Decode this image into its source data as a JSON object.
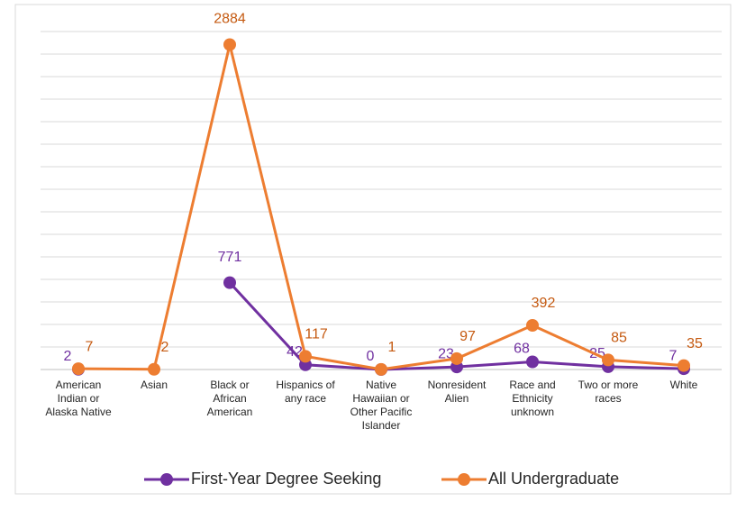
{
  "chart_data": {
    "type": "line",
    "categories": [
      "American\nIndian or\nAlaska Native",
      "Asian",
      "Black or\nAfrican\nAmerican",
      "Hispanics of\nany race",
      "Native\nHawaiian or\nOther Pacific\nIslander",
      "Nonresident\nAlien",
      "Race and\nEthnicity\nunknown",
      "Two or more\nraces",
      "White"
    ],
    "series": [
      {
        "name": "First-Year Degree Seeking",
        "color": "#7030a0",
        "values": [
          2,
          null,
          771,
          42,
          0,
          23,
          68,
          25,
          7
        ]
      },
      {
        "name": "All Undergraduate",
        "color": "#ed7d31",
        "values": [
          7,
          2,
          2884,
          117,
          1,
          97,
          392,
          85,
          35
        ]
      }
    ],
    "ylim": [
      0,
      3000
    ],
    "yticks": [
      0,
      200,
      400,
      600,
      800,
      1000,
      1200,
      1400,
      1600,
      1800,
      2000,
      2200,
      2400,
      2600,
      2800,
      3000
    ],
    "grid": true,
    "legend": "bottom"
  }
}
